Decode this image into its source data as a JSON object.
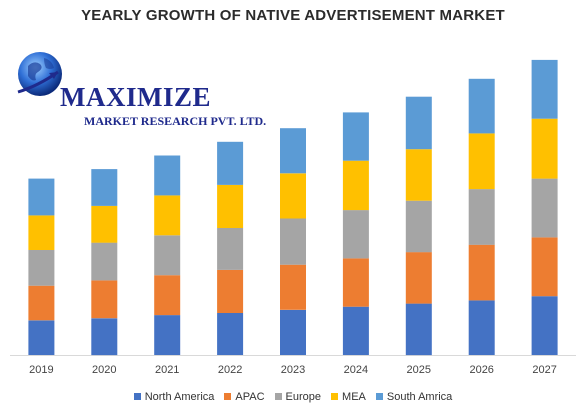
{
  "chart_data": {
    "type": "bar",
    "stacked": true,
    "title": "YEARLY GROWTH OF NATIVE ADVERTISEMENT MARKET",
    "categories": [
      "2019",
      "2020",
      "2021",
      "2022",
      "2023",
      "2024",
      "2025",
      "2026",
      "2027"
    ],
    "series": [
      {
        "name": "North America",
        "color": "#4472C4",
        "values": [
          33,
          35,
          38,
          40,
          43,
          46,
          49,
          52,
          56
        ]
      },
      {
        "name": "APAC",
        "color": "#ED7D31",
        "values": [
          33,
          36,
          38,
          41,
          43,
          46,
          49,
          53,
          56
        ]
      },
      {
        "name": "Europe",
        "color": "#A5A5A5",
        "values": [
          34,
          36,
          38,
          40,
          44,
          46,
          49,
          53,
          56
        ]
      },
      {
        "name": "MEA",
        "color": "#FFC000",
        "values": [
          33,
          35,
          38,
          41,
          43,
          47,
          49,
          53,
          57
        ]
      },
      {
        "name": "South Amrica",
        "color": "#5B9BD5",
        "values": [
          35,
          35,
          38,
          41,
          43,
          46,
          50,
          52,
          56
        ]
      }
    ],
    "ylim": [
      0,
      300
    ],
    "grid": false,
    "legend_position": "bottom"
  },
  "logo": {
    "brand": "MAXIMIZE",
    "subtitle": "MARKET RESEARCH PVT. LTD."
  }
}
